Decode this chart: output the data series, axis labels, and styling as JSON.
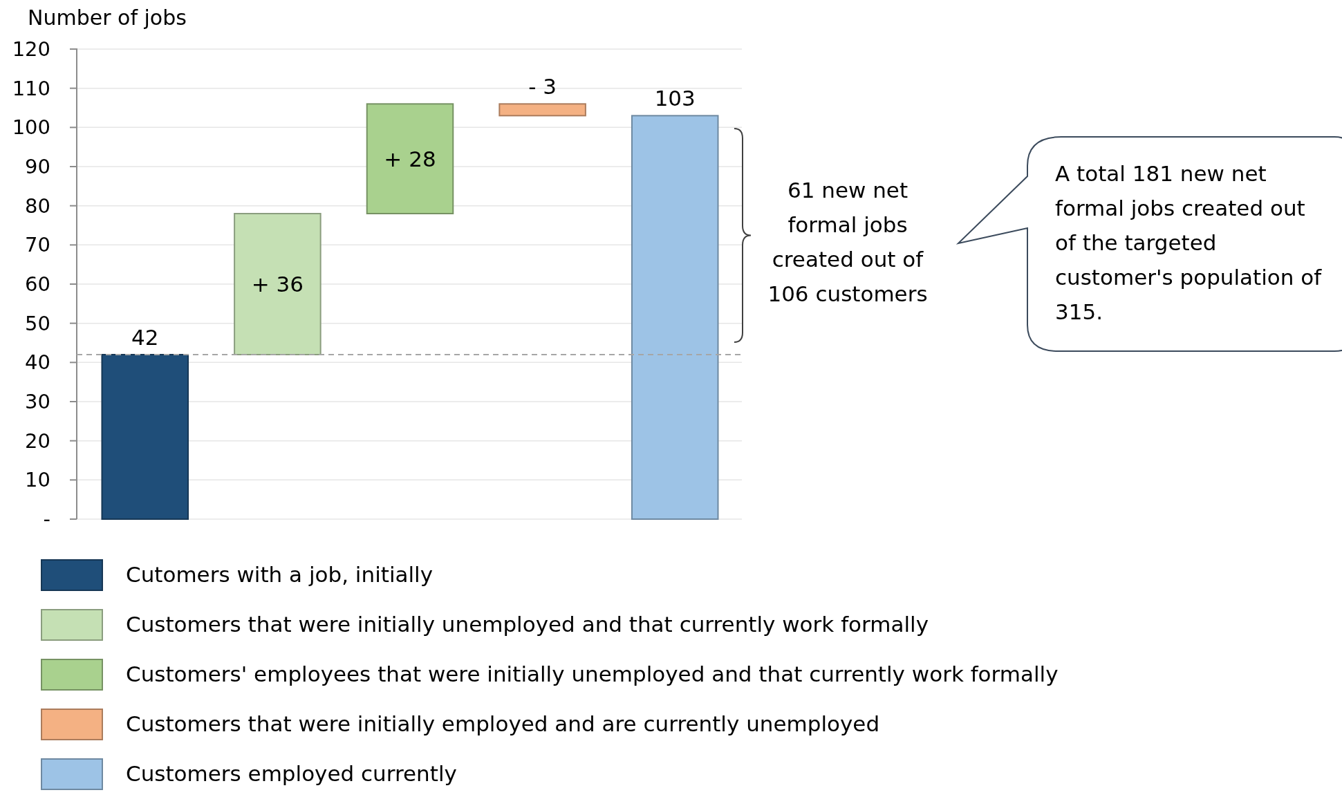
{
  "chart_data": {
    "type": "bar",
    "ylabel": "Number of jobs",
    "categories": [
      null,
      null,
      null,
      null,
      null
    ],
    "series": [
      {
        "name": "Cutomers with a job, initially",
        "color": "#1f4e79",
        "values": [
          42,
          null,
          null,
          null,
          null
        ],
        "base": [
          0,
          null,
          null,
          null,
          null
        ]
      },
      {
        "name": "Customers that were initially unemployed and that currently work formally",
        "color": "#c5e0b4",
        "values": [
          null,
          36,
          null,
          null,
          null
        ],
        "base": [
          null,
          42,
          null,
          null,
          null
        ]
      },
      {
        "name": "Customers' employees that were initially unemployed and that currently work formally",
        "color": "#a9d18e",
        "values": [
          null,
          null,
          28,
          null,
          null
        ],
        "base": [
          null,
          null,
          78,
          null,
          null
        ]
      },
      {
        "name": "Customers that were initially employed and are currently unemployed",
        "color": "#f4b183",
        "values": [
          null,
          null,
          null,
          -3,
          null
        ],
        "base": [
          null,
          null,
          null,
          106,
          null
        ]
      },
      {
        "name": "Customers employed currently",
        "color": "#9dc3e6",
        "values": [
          null,
          null,
          null,
          null,
          103
        ],
        "base": [
          null,
          null,
          null,
          null,
          0
        ]
      }
    ],
    "value_labels": [
      "42",
      "+ 36",
      "+ 28",
      "- 3",
      "103"
    ],
    "ylim": [
      0,
      120
    ],
    "yticks": [
      {
        "value": 0,
        "label": "-"
      },
      10,
      20,
      30,
      40,
      50,
      60,
      70,
      80,
      90,
      100,
      110,
      120
    ],
    "grid": "y",
    "legend": "bottom",
    "ref_lines": [
      {
        "axis": "y",
        "value": 42,
        "color": "#a6a6a6",
        "line_style": "dashed"
      }
    ],
    "annotations": [
      "61 new net formal jobs created out of 106 customers",
      "A total 181 new net formal jobs created out of the targeted customer's population of 315."
    ]
  }
}
